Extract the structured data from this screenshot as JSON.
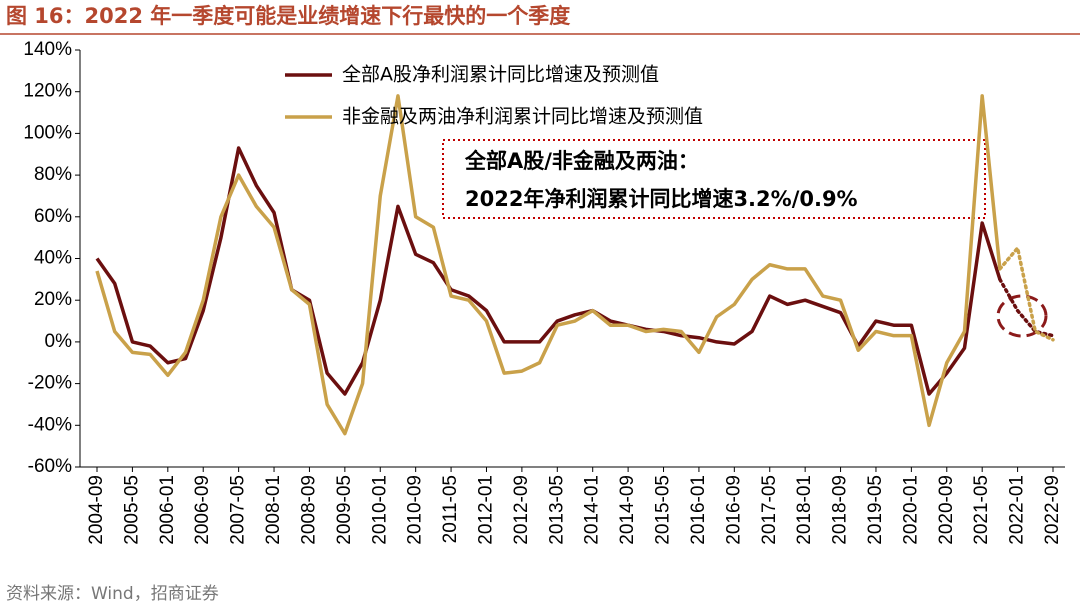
{
  "chart_data": {
    "type": "line",
    "title": "图 16：2022 年一季度可能是业绩增速下行最快的一个季度",
    "source": "资料来源：Wind，招商证券",
    "annotation": [
      "全部A股/非金融及两油：",
      "2022年净利润累计同比增速3.2%/0.9%"
    ],
    "categories": [
      "2004-09",
      null,
      "2005-05",
      null,
      "2006-01",
      null,
      "2006-09",
      null,
      "2007-05",
      null,
      "2008-01",
      null,
      "2008-09",
      null,
      "2009-05",
      null,
      "2010-01",
      null,
      "2010-09",
      null,
      "2011-05",
      null,
      "2012-01",
      null,
      "2012-09",
      null,
      "2013-05",
      null,
      "2014-01",
      null,
      "2014-09",
      null,
      "2015-05",
      null,
      "2016-01",
      null,
      "2016-09",
      null,
      "2017-05",
      null,
      "2018-01",
      null,
      "2018-09",
      null,
      "2019-05",
      null,
      "2020-01",
      null,
      "2020-09",
      null,
      "2021-05",
      null,
      "2022-01",
      null,
      "2022-09"
    ],
    "series": [
      {
        "name": "全部A股净利润累计同比增速及预测值",
        "color": "#6b0f0f",
        "values": [
          40,
          28,
          0,
          -2,
          -10,
          -8,
          15,
          50,
          93,
          75,
          62,
          25,
          20,
          -15,
          -25,
          -10,
          20,
          65,
          42,
          38,
          25,
          22,
          15,
          0,
          0,
          0,
          10,
          13,
          15,
          10,
          8,
          6,
          5,
          3,
          2,
          0,
          -1,
          5,
          22,
          18,
          20,
          17,
          14,
          -2,
          10,
          8,
          8,
          -25,
          -15,
          -3,
          57,
          30,
          null,
          null,
          null
        ],
        "forecast": [
          null,
          null,
          null,
          null,
          null,
          null,
          null,
          null,
          null,
          null,
          null,
          null,
          null,
          null,
          null,
          null,
          null,
          null,
          null,
          null,
          null,
          null,
          null,
          null,
          null,
          null,
          null,
          null,
          null,
          null,
          null,
          null,
          null,
          null,
          null,
          null,
          null,
          null,
          null,
          null,
          null,
          null,
          null,
          null,
          null,
          null,
          null,
          null,
          null,
          null,
          null,
          30,
          15,
          5,
          3
        ]
      },
      {
        "name": "非金融及两油净利润累计同比增速及预测值",
        "color": "#c9a14a",
        "values": [
          34,
          5,
          -5,
          -6,
          -16,
          -5,
          20,
          60,
          80,
          65,
          55,
          25,
          18,
          -30,
          -44,
          -20,
          70,
          118,
          60,
          55,
          22,
          20,
          10,
          -15,
          -14,
          -10,
          8,
          10,
          15,
          8,
          8,
          5,
          6,
          5,
          -5,
          12,
          18,
          30,
          37,
          35,
          35,
          22,
          20,
          -4,
          5,
          3,
          3,
          -40,
          -10,
          5,
          118,
          35,
          null,
          null,
          null
        ],
        "forecast": [
          null,
          null,
          null,
          null,
          null,
          null,
          null,
          null,
          null,
          null,
          null,
          null,
          null,
          null,
          null,
          null,
          null,
          null,
          null,
          null,
          null,
          null,
          null,
          null,
          null,
          null,
          null,
          null,
          null,
          null,
          null,
          null,
          null,
          null,
          null,
          null,
          null,
          null,
          null,
          null,
          null,
          null,
          null,
          null,
          null,
          null,
          null,
          null,
          null,
          null,
          null,
          35,
          45,
          5,
          1
        ]
      }
    ],
    "ylim": [
      -60,
      140
    ],
    "yticks": [
      {
        "value": -60,
        "label": "-60%"
      },
      {
        "value": -40,
        "label": "-40%"
      },
      {
        "value": -20,
        "label": "-20%"
      },
      {
        "value": 0,
        "label": "0%"
      },
      {
        "value": 20,
        "label": "20%"
      },
      {
        "value": 40,
        "label": "40%"
      },
      {
        "value": 60,
        "label": "60%"
      },
      {
        "value": 80,
        "label": "80%"
      },
      {
        "value": 100,
        "label": "100%"
      },
      {
        "value": 120,
        "label": "120%"
      },
      {
        "value": 140,
        "label": "140%"
      }
    ],
    "grid": false
  }
}
